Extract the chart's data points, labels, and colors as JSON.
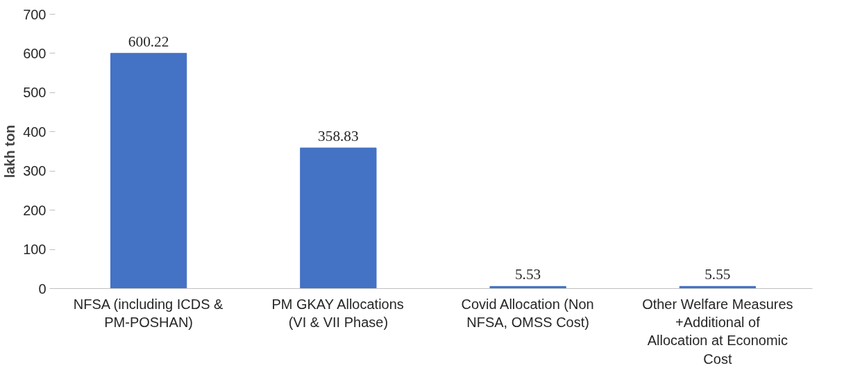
{
  "chart_data": {
    "type": "bar",
    "ylabel": "lakh ton",
    "categories": [
      "NFSA (including ICDS & PM-POSHAN)",
      "PM GKAY Allocations (VI & VII Phase)",
      "Covid Allocation (Non NFSA, OMSS Cost)",
      "Other Welfare Measures +Additional of Allocation at Economic Cost"
    ],
    "values": [
      600.22,
      358.83,
      5.53,
      5.55
    ],
    "color": "#4472c4",
    "ylim": [
      0,
      700
    ],
    "yticks": [
      0,
      100,
      200,
      300,
      400,
      500,
      600,
      700
    ],
    "grid": false,
    "data_labels": true
  }
}
